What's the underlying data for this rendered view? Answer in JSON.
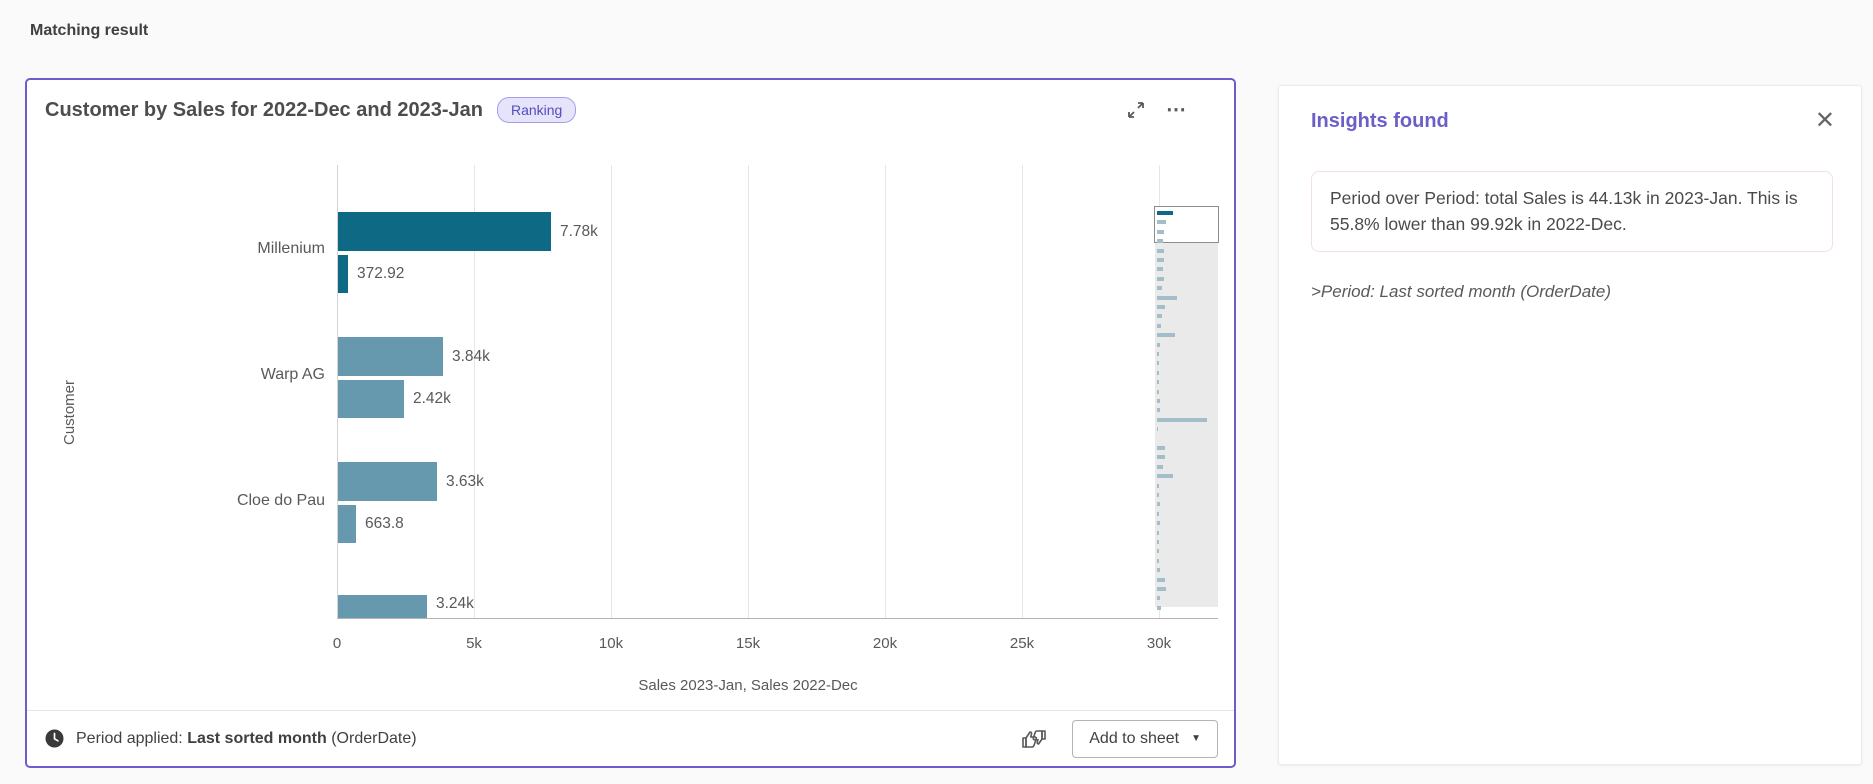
{
  "page": {
    "heading": "Matching result"
  },
  "chart_card": {
    "title": "Customer by Sales for 2022-Dec and 2023-Jan",
    "badge": "Ranking",
    "border_color": "#6a5fc9",
    "icons": {
      "expand": "expand-icon",
      "more": "⋯",
      "clock": "clock-icon",
      "feedback": "thumbs-feedback-icon",
      "caret": "▼",
      "close": "✕"
    },
    "footer": {
      "period_applied_label": "Period applied:",
      "period_value": "Last sorted month",
      "period_suffix": "(OrderDate)",
      "add_to_sheet_label": "Add to sheet"
    }
  },
  "chart_data": {
    "type": "bar",
    "orientation": "horizontal",
    "title": "Customer by Sales for 2022-Dec and 2023-Jan",
    "xlabel": "Sales 2023-Jan, Sales 2022-Dec",
    "ylabel": "Customer",
    "xlim": [
      0,
      30000
    ],
    "x_ticks": [
      "0",
      "5k",
      "10k",
      "15k",
      "20k",
      "25k",
      "30k"
    ],
    "grid": true,
    "categories": [
      "Millenium",
      "Warp AG",
      "Cloe do Pau",
      ""
    ],
    "series": [
      {
        "name": "Sales 2023-Jan",
        "values": [
          7780,
          3840,
          3630,
          3240
        ],
        "labels": [
          "7.78k",
          "3.84k",
          "3.63k",
          "3.24k"
        ]
      },
      {
        "name": "Sales 2022-Dec",
        "values": [
          372.92,
          2420,
          663.8,
          null
        ],
        "labels": [
          "372.92",
          "2.42k",
          "663.8",
          null
        ]
      }
    ],
    "colors": {
      "highlight": "#0e6985",
      "normal": "#6699ad",
      "minimap_bar": "#a3bdc9"
    },
    "minimap_fractions": [
      0.27,
      0.14,
      0.12,
      0.1,
      0.12,
      0.11,
      0.1,
      0.11,
      0.09,
      0.33,
      0.13,
      0.08,
      0.07,
      0.3,
      0.05,
      0.04,
      0.04,
      0.03,
      0.04,
      0.03,
      0.05,
      0.05,
      0.82,
      0.02,
      0.0,
      0.13,
      0.13,
      0.1,
      0.27,
      0.04,
      0.04,
      0.05,
      0.04,
      0.05,
      0.04,
      0.04,
      0.04,
      0.04,
      0.05,
      0.13,
      0.14,
      0.05,
      0.06
    ]
  },
  "insights_panel": {
    "title": "Insights found",
    "insight_text": "Period over Period: total Sales is 44.13k in 2023-Jan. This is 55.8% lower than 99.92k in 2022-Dec.",
    "period_note": ">Period: Last sorted month (OrderDate)"
  }
}
